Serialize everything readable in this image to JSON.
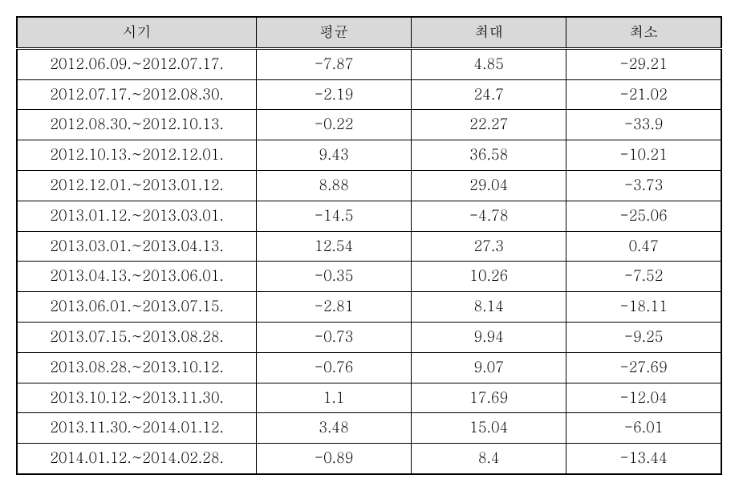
{
  "table": {
    "columns": [
      "시기",
      "평균",
      "최대",
      "최소"
    ],
    "rows": [
      [
        "2012.06.09.~2012.07.17.",
        "-7.87",
        "4.85",
        "-29.21"
      ],
      [
        "2012.07.17.~2012.08.30.",
        "-2.19",
        "24.7",
        "-21.02"
      ],
      [
        "2012.08.30.~2012.10.13.",
        "-0.22",
        "22.27",
        "-33.9"
      ],
      [
        "2012.10.13.~2012.12.01.",
        "9.43",
        "36.58",
        "-10.21"
      ],
      [
        "2012.12.01.~2013.01.12.",
        "8.88",
        "29.04",
        "-3.73"
      ],
      [
        "2013.01.12.~2013.03.01.",
        "-14.5",
        "-4.78",
        "-25.06"
      ],
      [
        "2013.03.01.~2013.04.13.",
        "12.54",
        "27.3",
        "0.47"
      ],
      [
        "2013.04.13.~2013.06.01.",
        "-0.35",
        "10.26",
        "-7.52"
      ],
      [
        "2013.06.01.~2013.07.15.",
        "-2.81",
        "8.14",
        "-18.11"
      ],
      [
        "2013.07.15.~2013.08.28.",
        "-0.73",
        "9.94",
        "-9.25"
      ],
      [
        "2013.08.28.~2013.10.12.",
        "-0.76",
        "9.07",
        "-27.69"
      ],
      [
        "2013.10.12.~2013.11.30.",
        "1.1",
        "17.69",
        "-12.04"
      ],
      [
        "2013.11.30.~2014.01.12.",
        "3.48",
        "15.04",
        "-6.01"
      ],
      [
        "2014.01.12.~2014.02.28.",
        "-0.89",
        "8.4",
        "-13.44"
      ]
    ],
    "header_bg": "#d9d9d9",
    "border_color": "#000000",
    "font_size": 18
  }
}
